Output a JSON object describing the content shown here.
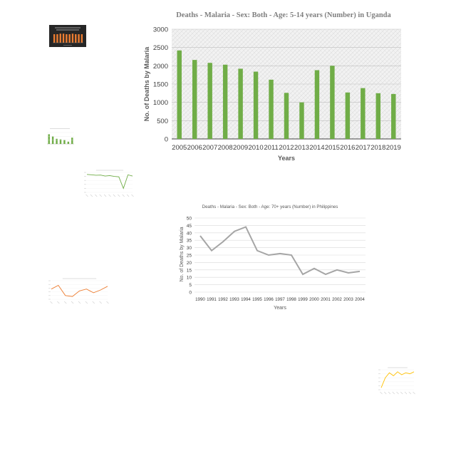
{
  "chart_data": [
    {
      "type": "bar",
      "title": "Deaths - Malaria - Sex: Both - Age: 5-14 years (Number) in Uganda",
      "xlabel": "Years",
      "ylabel": "No. of Deaths by Malaria",
      "categories": [
        "2005",
        "2006",
        "2007",
        "2008",
        "2009",
        "2010",
        "2011",
        "2012",
        "2013",
        "2014",
        "2015",
        "2016",
        "2017",
        "2018",
        "2019"
      ],
      "values": [
        2420,
        2160,
        2080,
        2030,
        1920,
        1840,
        1620,
        1260,
        1000,
        1880,
        2000,
        1270,
        1390,
        1250,
        1230
      ],
      "ylim": [
        0,
        3000
      ],
      "yticks": [
        0,
        500,
        1000,
        1500,
        2000,
        2500,
        3000
      ],
      "grid": true,
      "bar_color": "#70ad47"
    },
    {
      "type": "line",
      "title": "Deaths - Malaria - Sex: Both - Age: 70+ years (Number) in Philippines",
      "xlabel": "Years",
      "ylabel": "No. of Deaths by Malaria",
      "categories": [
        "1990",
        "1991",
        "1992",
        "1993",
        "1994",
        "1995",
        "1996",
        "1997",
        "1998",
        "1999",
        "2000",
        "2001",
        "2002",
        "2003",
        "2004"
      ],
      "values": [
        38,
        28,
        34,
        41,
        44,
        28,
        25,
        26,
        25,
        12,
        16,
        12,
        15,
        13,
        14
      ],
      "ylim": [
        0,
        50
      ],
      "yticks": [
        0,
        5,
        10,
        15,
        20,
        25,
        30,
        35,
        40,
        45,
        50
      ],
      "grid": true,
      "line_color": "#a5a5a5"
    }
  ],
  "thumbnails": {
    "dark_bar": {
      "bar_values": [
        0.8,
        0.8,
        0.85,
        0.85,
        0.8,
        0.8,
        0.85,
        0.8,
        0.8,
        0.8
      ],
      "bar_color": "#ed7d31",
      "bg_color": "#262626"
    },
    "green_bar": {
      "bar_values": [
        0.85,
        0.65,
        0.45,
        0.4,
        0.35,
        0.2,
        0.55
      ],
      "bar_color": "#70ad47"
    },
    "green_line": {
      "line_values": [
        0.9,
        0.88,
        0.86,
        0.87,
        0.82,
        0.84,
        0.8,
        0.78,
        0.2,
        0.88,
        0.82
      ],
      "line_color": "#70ad47"
    },
    "orange_line": {
      "line_values": [
        0.55,
        0.75,
        0.2,
        0.15,
        0.45,
        0.55,
        0.35,
        0.5,
        0.7
      ],
      "line_color": "#ed7d31"
    },
    "gold_line": {
      "line_values": [
        0.1,
        0.6,
        0.85,
        0.7,
        0.9,
        0.75,
        0.85,
        0.8,
        0.9
      ],
      "line_color": "#ffc000"
    }
  }
}
